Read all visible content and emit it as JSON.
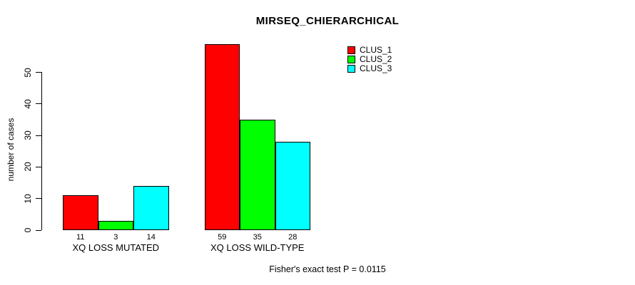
{
  "chart_data": {
    "type": "bar",
    "title": "MIRSEQ_CHIERARCHICAL",
    "ylabel": "number of cases",
    "xlabel": "",
    "categories": [
      "XQ LOSS MUTATED",
      "XQ LOSS WILD-TYPE"
    ],
    "series": [
      {
        "name": "CLUS_1",
        "color": "#ff0000",
        "values": [
          11,
          59
        ]
      },
      {
        "name": "CLUS_2",
        "color": "#00ff00",
        "values": [
          3,
          35
        ]
      },
      {
        "name": "CLUS_3",
        "color": "#00ffff",
        "values": [
          14,
          28
        ]
      }
    ],
    "yticks": [
      0,
      10,
      20,
      30,
      40,
      50
    ],
    "ylim": [
      0,
      50
    ],
    "bar_value_labels": [
      [
        11,
        3,
        14
      ],
      [
        59,
        35,
        28
      ]
    ],
    "annotation": "Fisher's exact test P = 0.0115",
    "legend_position": "top-right",
    "grid": false,
    "background_color": "#ffffff",
    "bar_border_color": "#000000"
  }
}
